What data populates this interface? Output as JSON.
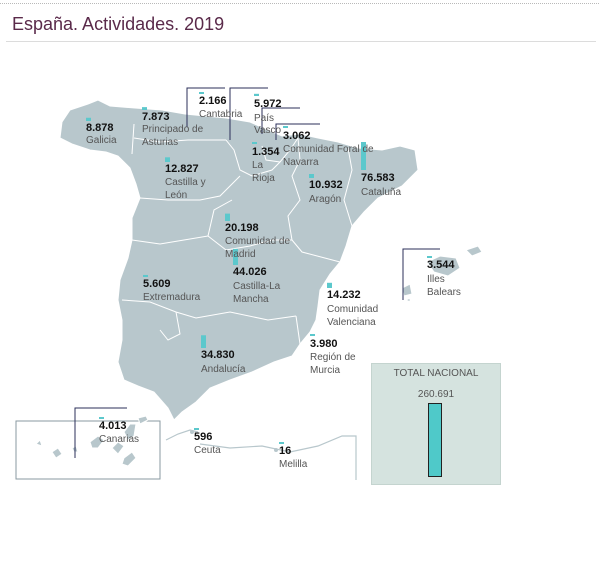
{
  "title": "España. Actividades. 2019",
  "total": {
    "label": "TOTAL NACIONAL",
    "value": "260.691"
  },
  "colors": {
    "region_fill": "#b8c7cc",
    "bar": "#5cc8cc",
    "leader": "#2b2f5a",
    "total_bg": "#d5e3df"
  },
  "regions": [
    {
      "id": "galicia",
      "value": "8.878",
      "name1": "Galicia",
      "name2": ""
    },
    {
      "id": "asturias",
      "value": "7.873",
      "name1": "Principado de",
      "name2": "Asturias"
    },
    {
      "id": "cantabria",
      "value": "2.166",
      "name1": "Cantabria",
      "name2": ""
    },
    {
      "id": "pais-vasco",
      "value": "5.972",
      "name1": "País",
      "name2": "Vasco"
    },
    {
      "id": "navarra",
      "value": "3.062",
      "name1": "Comunidad Foral de",
      "name2": "Navarra"
    },
    {
      "id": "la-rioja",
      "value": "1.354",
      "name1": "La",
      "name2": "Rioja"
    },
    {
      "id": "castilla-leon",
      "value": "12.827",
      "name1": "Castilla y",
      "name2": "León"
    },
    {
      "id": "aragon",
      "value": "10.932",
      "name1": "Aragón",
      "name2": ""
    },
    {
      "id": "cataluna",
      "value": "76.583",
      "name1": "Cataluña",
      "name2": ""
    },
    {
      "id": "madrid",
      "value": "20.198",
      "name1": "Comunidad de",
      "name2": "Madrid"
    },
    {
      "id": "castilla-la-mancha",
      "value": "44.026",
      "name1": "Castilla-La",
      "name2": "Mancha"
    },
    {
      "id": "extremadura",
      "value": "5.609",
      "name1": "Extremadura",
      "name2": ""
    },
    {
      "id": "valenciana",
      "value": "14.232",
      "name1": "Comunidad",
      "name2": "Valenciana"
    },
    {
      "id": "baleares",
      "value": "3.544",
      "name1": "Illes",
      "name2": "Balears"
    },
    {
      "id": "murcia",
      "value": "3.980",
      "name1": "Región de",
      "name2": "Murcia"
    },
    {
      "id": "andalucia",
      "value": "34.830",
      "name1": "Andalucía",
      "name2": ""
    },
    {
      "id": "canarias",
      "value": "4.013",
      "name1": "Canarias",
      "name2": ""
    },
    {
      "id": "ceuta",
      "value": "596",
      "name1": "Ceuta",
      "name2": ""
    },
    {
      "id": "melilla",
      "value": "16",
      "name1": "Melilla",
      "name2": ""
    }
  ]
}
